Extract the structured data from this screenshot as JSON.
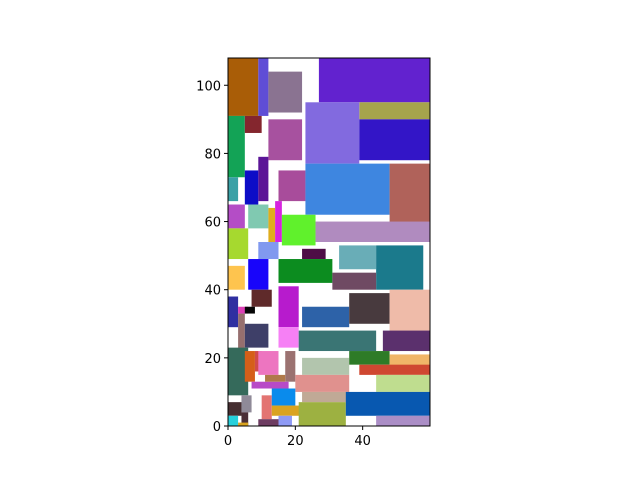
{
  "chart_data": {
    "type": "rect-packing",
    "title": "",
    "xlabel": "",
    "ylabel": "",
    "xlim": [
      0,
      60
    ],
    "ylim": [
      0,
      108
    ],
    "aspect": "equal",
    "grid": false,
    "legend": "none",
    "x_ticks": [
      0,
      20,
      40
    ],
    "y_ticks": [
      0,
      20,
      40,
      60,
      80,
      100
    ],
    "rects": [
      {
        "x": 0,
        "y": 91,
        "w": 9,
        "h": 17,
        "color": "#a95d07"
      },
      {
        "x": 9,
        "y": 91,
        "w": 3,
        "h": 17,
        "color": "#5f4dd6"
      },
      {
        "x": 12,
        "y": 92,
        "w": 10,
        "h": 12,
        "color": "#8a7391"
      },
      {
        "x": 27,
        "y": 95,
        "w": 33,
        "h": 13,
        "color": "#6222cf"
      },
      {
        "x": 39,
        "y": 90,
        "w": 21,
        "h": 5,
        "color": "#a6a44c"
      },
      {
        "x": 23,
        "y": 77,
        "w": 16,
        "h": 18,
        "color": "#826adf"
      },
      {
        "x": 39,
        "y": 78,
        "w": 21,
        "h": 12,
        "color": "#3315c7"
      },
      {
        "x": 0,
        "y": 73,
        "w": 5,
        "h": 18,
        "color": "#13a356"
      },
      {
        "x": 5,
        "y": 86,
        "w": 5,
        "h": 5,
        "color": "#84262e"
      },
      {
        "x": 12,
        "y": 78,
        "w": 10,
        "h": 12,
        "color": "#a7519f"
      },
      {
        "x": 0,
        "y": 66,
        "w": 3,
        "h": 7,
        "color": "#3aa1a6"
      },
      {
        "x": 5,
        "y": 65,
        "w": 4,
        "h": 10,
        "color": "#0d0dc7"
      },
      {
        "x": 9,
        "y": 66,
        "w": 3,
        "h": 13,
        "color": "#5b1597"
      },
      {
        "x": 15,
        "y": 66,
        "w": 8,
        "h": 9,
        "color": "#a84c9b"
      },
      {
        "x": 23,
        "y": 62,
        "w": 25,
        "h": 15,
        "color": "#3e86e0"
      },
      {
        "x": 48,
        "y": 58,
        "w": 12,
        "h": 19,
        "color": "#b0625a"
      },
      {
        "x": 0,
        "y": 58,
        "w": 5,
        "h": 7,
        "color": "#b44dc6"
      },
      {
        "x": 6,
        "y": 58,
        "w": 6,
        "h": 7,
        "color": "#80c9b1"
      },
      {
        "x": 12,
        "y": 54,
        "w": 2,
        "h": 10,
        "color": "#e0ad1d"
      },
      {
        "x": 14,
        "y": 54,
        "w": 2,
        "h": 12,
        "color": "#d723df"
      },
      {
        "x": 16,
        "y": 53,
        "w": 10,
        "h": 9,
        "color": "#60f12c"
      },
      {
        "x": 26,
        "y": 54,
        "w": 34,
        "h": 6,
        "color": "#b08bbf"
      },
      {
        "x": 0,
        "y": 49,
        "w": 6,
        "h": 9,
        "color": "#a6d92f"
      },
      {
        "x": 9,
        "y": 49,
        "w": 6,
        "h": 5,
        "color": "#8199ef"
      },
      {
        "x": 22,
        "y": 49,
        "w": 7,
        "h": 3,
        "color": "#4e0d46"
      },
      {
        "x": 33,
        "y": 46,
        "w": 11,
        "h": 7,
        "color": "#69adb7"
      },
      {
        "x": 44,
        "y": 40,
        "w": 14,
        "h": 13,
        "color": "#1b7a8c"
      },
      {
        "x": 0,
        "y": 40,
        "w": 5,
        "h": 7,
        "color": "#fec44e"
      },
      {
        "x": 6,
        "y": 40,
        "w": 6,
        "h": 9,
        "color": "#1805fa"
      },
      {
        "x": 15,
        "y": 42,
        "w": 16,
        "h": 7,
        "color": "#0c8c1f"
      },
      {
        "x": 31,
        "y": 40,
        "w": 13,
        "h": 5,
        "color": "#6f4a63"
      },
      {
        "x": 7,
        "y": 35,
        "w": 6,
        "h": 5,
        "color": "#5f2a2a"
      },
      {
        "x": 15,
        "y": 29,
        "w": 6,
        "h": 12,
        "color": "#b71bcd"
      },
      {
        "x": 0,
        "y": 29,
        "w": 3,
        "h": 9,
        "color": "#2f2fa1"
      },
      {
        "x": 3,
        "y": 33,
        "w": 3,
        "h": 2,
        "color": "#dc40b6"
      },
      {
        "x": 5,
        "y": 33,
        "w": 3,
        "h": 2,
        "color": "#060606"
      },
      {
        "x": 22,
        "y": 29,
        "w": 14,
        "h": 6,
        "color": "#2d62a8"
      },
      {
        "x": 36,
        "y": 30,
        "w": 12,
        "h": 9,
        "color": "#483a3e"
      },
      {
        "x": 48,
        "y": 27,
        "w": 12,
        "h": 13,
        "color": "#efbba9"
      },
      {
        "x": 3,
        "y": 22,
        "w": 2,
        "h": 11,
        "color": "#966f6e"
      },
      {
        "x": 5,
        "y": 23,
        "w": 7,
        "h": 7,
        "color": "#3e3f68"
      },
      {
        "x": 15,
        "y": 23,
        "w": 6,
        "h": 6,
        "color": "#f680f5"
      },
      {
        "x": 21,
        "y": 22,
        "w": 23,
        "h": 6,
        "color": "#3a7574"
      },
      {
        "x": 46,
        "y": 22,
        "w": 14,
        "h": 6,
        "color": "#5b306d"
      },
      {
        "x": 0,
        "y": 9,
        "w": 6,
        "h": 14,
        "color": "#356a5b"
      },
      {
        "x": 5,
        "y": 13,
        "w": 3,
        "h": 9,
        "color": "#d55f19"
      },
      {
        "x": 8,
        "y": 16,
        "w": 2,
        "h": 6,
        "color": "#d14b4d"
      },
      {
        "x": 9,
        "y": 15,
        "w": 6,
        "h": 7,
        "color": "#ed75c0"
      },
      {
        "x": 17,
        "y": 13,
        "w": 3,
        "h": 9,
        "color": "#9b7271"
      },
      {
        "x": 22,
        "y": 15,
        "w": 14,
        "h": 5,
        "color": "#b2c5ad"
      },
      {
        "x": 36,
        "y": 18,
        "w": 12,
        "h": 4,
        "color": "#2e7b27"
      },
      {
        "x": 48,
        "y": 17,
        "w": 12,
        "h": 4,
        "color": "#f0b568"
      },
      {
        "x": 39,
        "y": 15,
        "w": 21,
        "h": 3,
        "color": "#cf4731"
      },
      {
        "x": 7,
        "y": 11,
        "w": 11,
        "h": 2,
        "color": "#b84ac7"
      },
      {
        "x": 11,
        "y": 13,
        "w": 6,
        "h": 2,
        "color": "#b0794a"
      },
      {
        "x": 20,
        "y": 10,
        "w": 16,
        "h": 5,
        "color": "#e0918e"
      },
      {
        "x": 44,
        "y": 10,
        "w": 16,
        "h": 5,
        "color": "#bfdd8f"
      },
      {
        "x": 0,
        "y": 3,
        "w": 4,
        "h": 4,
        "color": "#462e31"
      },
      {
        "x": 4,
        "y": 4,
        "w": 3,
        "h": 5,
        "color": "#8f8a98"
      },
      {
        "x": 4,
        "y": 0,
        "w": 2,
        "h": 4,
        "color": "#4a2e36"
      },
      {
        "x": 0,
        "y": 0,
        "w": 3,
        "h": 3,
        "color": "#27d0db"
      },
      {
        "x": 3,
        "y": 0,
        "w": 3,
        "h": 1,
        "color": "#d7a21f"
      },
      {
        "x": 10,
        "y": 2,
        "w": 3,
        "h": 7,
        "color": "#e37472"
      },
      {
        "x": 13,
        "y": 6,
        "w": 7,
        "h": 5,
        "color": "#0a8bec"
      },
      {
        "x": 22,
        "y": 7,
        "w": 14,
        "h": 3,
        "color": "#c0a996"
      },
      {
        "x": 13,
        "y": 3,
        "w": 9,
        "h": 3,
        "color": "#daa321"
      },
      {
        "x": 21,
        "y": 0,
        "w": 14,
        "h": 7,
        "color": "#9db141"
      },
      {
        "x": 35,
        "y": 3,
        "w": 25,
        "h": 7,
        "color": "#0858b0"
      },
      {
        "x": 9,
        "y": 0,
        "w": 6,
        "h": 2,
        "color": "#6d3c61"
      },
      {
        "x": 15,
        "y": 0,
        "w": 4,
        "h": 3,
        "color": "#8e9af5"
      },
      {
        "x": 44,
        "y": 0,
        "w": 16,
        "h": 3,
        "color": "#ab8ec6"
      }
    ]
  }
}
